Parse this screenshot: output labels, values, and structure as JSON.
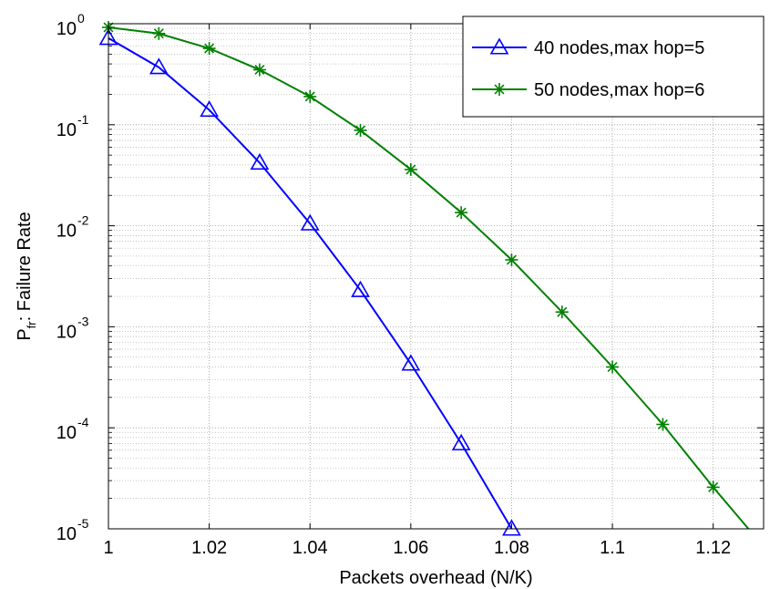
{
  "chart_data": {
    "type": "line",
    "xlabel": "Packets overhead (N/K)",
    "ylabel": {
      "prefix": "P",
      "subscript": "fr",
      "suffix": ": Failure Rate"
    },
    "xlim": [
      1,
      1.13
    ],
    "ylim": [
      1e-05,
      1
    ],
    "yscale": "log",
    "grid": true,
    "legend_position": "top-right",
    "x_ticks": [
      "1",
      "1.02",
      "1.04",
      "1.06",
      "1.08",
      "1.1",
      "1.12"
    ],
    "y_ticks": [
      {
        "base": "10",
        "exp": "-5"
      },
      {
        "base": "10",
        "exp": "-4"
      },
      {
        "base": "10",
        "exp": "-3"
      },
      {
        "base": "10",
        "exp": "-2"
      },
      {
        "base": "10",
        "exp": "-1"
      },
      {
        "base": "10",
        "exp": "0"
      }
    ],
    "series": [
      {
        "name": "40 nodes,max hop=5",
        "color": "#0000ff",
        "marker": "triangle",
        "x": [
          1.0,
          1.01,
          1.02,
          1.03,
          1.04,
          1.05,
          1.06,
          1.07,
          1.08
        ],
        "y": [
          0.72,
          0.37,
          0.14,
          0.042,
          0.0105,
          0.0023,
          0.00043,
          7e-05,
          1e-05
        ]
      },
      {
        "name": "50 nodes,max hop=6",
        "color": "#008000",
        "marker": "asterisk",
        "x": [
          1.0,
          1.01,
          1.02,
          1.03,
          1.04,
          1.05,
          1.06,
          1.07,
          1.08,
          1.09,
          1.1,
          1.11,
          1.12,
          1.127
        ],
        "y": [
          0.92,
          0.8,
          0.57,
          0.35,
          0.19,
          0.088,
          0.036,
          0.0135,
          0.0046,
          0.0014,
          0.0004,
          0.000108,
          2.58e-05,
          1e-05
        ]
      }
    ]
  }
}
